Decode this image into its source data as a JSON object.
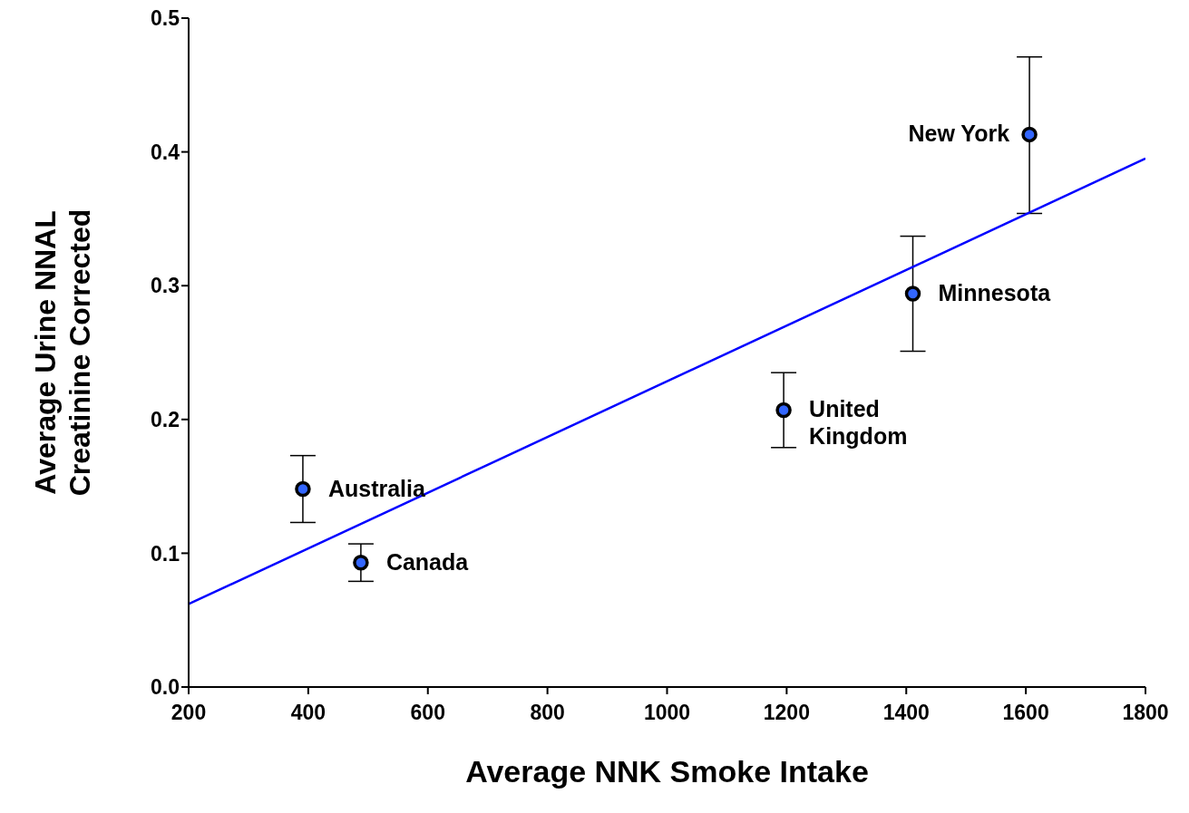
{
  "chart_data": {
    "type": "scatter",
    "xlabel": "Average NNK Smoke Intake",
    "ylabel": "Average Urine NNAL\nCreatinine Corrected",
    "xlim": [
      200,
      1800
    ],
    "xticks": [
      200,
      400,
      600,
      800,
      1000,
      1200,
      1400,
      1600,
      1800
    ],
    "ylim": [
      0,
      0.5
    ],
    "yticks": [
      {
        "value": 0,
        "label": "0.0"
      },
      0.1,
      0.2,
      0.3,
      0.4,
      0.5
    ],
    "grid": false,
    "legend": false,
    "marker": "circle",
    "series": [
      {
        "color": "#3366ff",
        "x": [
          391,
          488,
          1195,
          1411,
          1606
        ],
        "values": [
          0.148,
          0.093,
          0.207,
          0.294,
          0.413
        ],
        "errors": [
          [
            0.123,
            0.173
          ],
          [
            0.079,
            0.107
          ],
          [
            0.179,
            0.235
          ],
          [
            0.251,
            0.337
          ],
          [
            0.354,
            0.471
          ]
        ]
      },
      {
        "type": "line",
        "color": "#0000ff",
        "marker": "none",
        "line_style": "solid",
        "x": [
          200,
          1800
        ],
        "values": [
          0.062,
          0.395
        ]
      }
    ],
    "annotations": [
      {
        "text": "Australia",
        "x": 391,
        "y": 0.148
      },
      {
        "text": "Canada",
        "x": 488,
        "y": 0.093
      },
      {
        "text": "United\nKingdom",
        "x": 1195,
        "y": 0.207
      },
      {
        "text": "Minnesota",
        "x": 1411,
        "y": 0.294
      },
      {
        "text": "New York",
        "x": 1606,
        "y": 0.413
      }
    ]
  }
}
